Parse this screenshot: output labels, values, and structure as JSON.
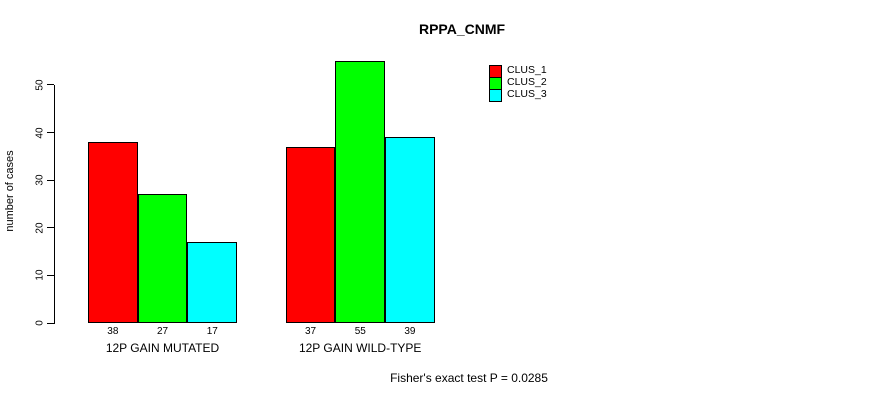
{
  "chart_data": {
    "type": "bar",
    "title": "RPPA_CNMF",
    "xlabel": "",
    "ylabel": "number of cases",
    "ylim": [
      0,
      55
    ],
    "yticks": [
      0,
      10,
      20,
      30,
      40,
      50
    ],
    "grid": false,
    "legend_position": "top-right",
    "background_color": "#ffffff",
    "bar_border_color": "#000000",
    "text_color": "#000000",
    "categories": [
      "12P GAIN MUTATED",
      "12P GAIN WILD-TYPE"
    ],
    "series": [
      {
        "name": "CLUS_1",
        "color": "#ff0000",
        "values": [
          38,
          37
        ]
      },
      {
        "name": "CLUS_2",
        "color": "#00ff00",
        "values": [
          27,
          55
        ]
      },
      {
        "name": "CLUS_3",
        "color": "#00ffff",
        "values": [
          17,
          39
        ]
      }
    ],
    "bar_value_labels_shown": true,
    "annotation": "Fisher's exact test P = 0.0285"
  }
}
